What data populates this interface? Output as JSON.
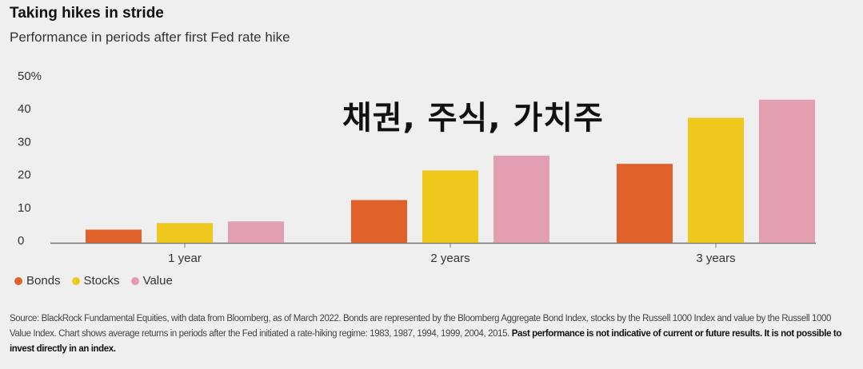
{
  "header": {
    "title": "Taking hikes in stride",
    "subtitle": "Performance in periods after first Fed rate hike"
  },
  "overlay_text": "채권, 주식, 가치주",
  "colors": {
    "Bonds": "#e0622a",
    "Stocks": "#efc81e",
    "Value": "#e39fb2",
    "axis": "#777777"
  },
  "chart_data": {
    "type": "bar",
    "categories": [
      "1 year",
      "2 years",
      "3 years"
    ],
    "series": [
      {
        "name": "Bonds",
        "values": [
          4,
          13,
          24
        ]
      },
      {
        "name": "Stocks",
        "values": [
          6,
          22,
          38
        ]
      },
      {
        "name": "Value",
        "values": [
          6.5,
          26.5,
          43.5
        ]
      }
    ],
    "y_ticks": [
      "50%",
      "40",
      "30",
      "20",
      "10",
      "0"
    ],
    "ylim": [
      0,
      50
    ],
    "grid": false,
    "legend_position": "bottom-left"
  },
  "legend": [
    {
      "label": "Bonds"
    },
    {
      "label": "Stocks"
    },
    {
      "label": "Value"
    }
  ],
  "footer": {
    "source_text": "Source: BlackRock Fundamental Equities, with data from Bloomberg, as of March 2022. Bonds are represented by the Bloomberg Aggregate Bond Index, stocks by the Russell 1000 Index and value by the Russell 1000 Value Index. Chart shows average returns in periods after the Fed initiated a rate-hiking regime: 1983, 1987, 1994, 1999, 2004, 2015.",
    "disclaimer": "Past performance is not indicative of current or future results. It is not possible to invest directly in an index."
  }
}
